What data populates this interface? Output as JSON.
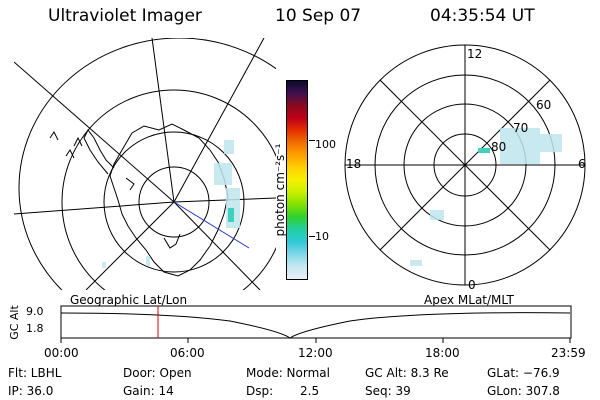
{
  "header": {
    "title": "Ultraviolet Imager",
    "date": "10 Sep 07",
    "time": "04:35:54 UT"
  },
  "colorbar": {
    "label": "photon cm⁻²s⁻¹",
    "ticks": [
      "100",
      "10"
    ],
    "colors": [
      "#0b0b2e",
      "#401050",
      "#8a0a20",
      "#c00018",
      "#e63000",
      "#f07000",
      "#ffa000",
      "#ffd000",
      "#f8f000",
      "#c8f000",
      "#80e000",
      "#30d030",
      "#20d0a0",
      "#30c8d8",
      "#80d8e8",
      "#c8e8f0",
      "#e8f0f4"
    ]
  },
  "polar_plot": {
    "labels": [
      "12",
      "60",
      "70",
      "80",
      "18",
      "6",
      "0"
    ]
  },
  "timeline": {
    "left_title": "Geographic Lat/Lon",
    "right_title": "Apex MLat/MLT",
    "axis_label": "GC Alt",
    "y_ticks": [
      "9.0",
      "1.8"
    ],
    "x_ticks": [
      "00:00",
      "06:00",
      "12:00",
      "18:00",
      "23:59"
    ]
  },
  "status": {
    "row1": [
      "Flt: LBHL",
      "Door: Open",
      "Mode: Normal",
      "GC Alt: 8.3 Re",
      "GLat: −76.9"
    ],
    "row2": [
      "IP: 36.0",
      "Gain: 14",
      "Dsp:",
      "2.5",
      "Seq: 39",
      "GLon: 307.8"
    ]
  }
}
